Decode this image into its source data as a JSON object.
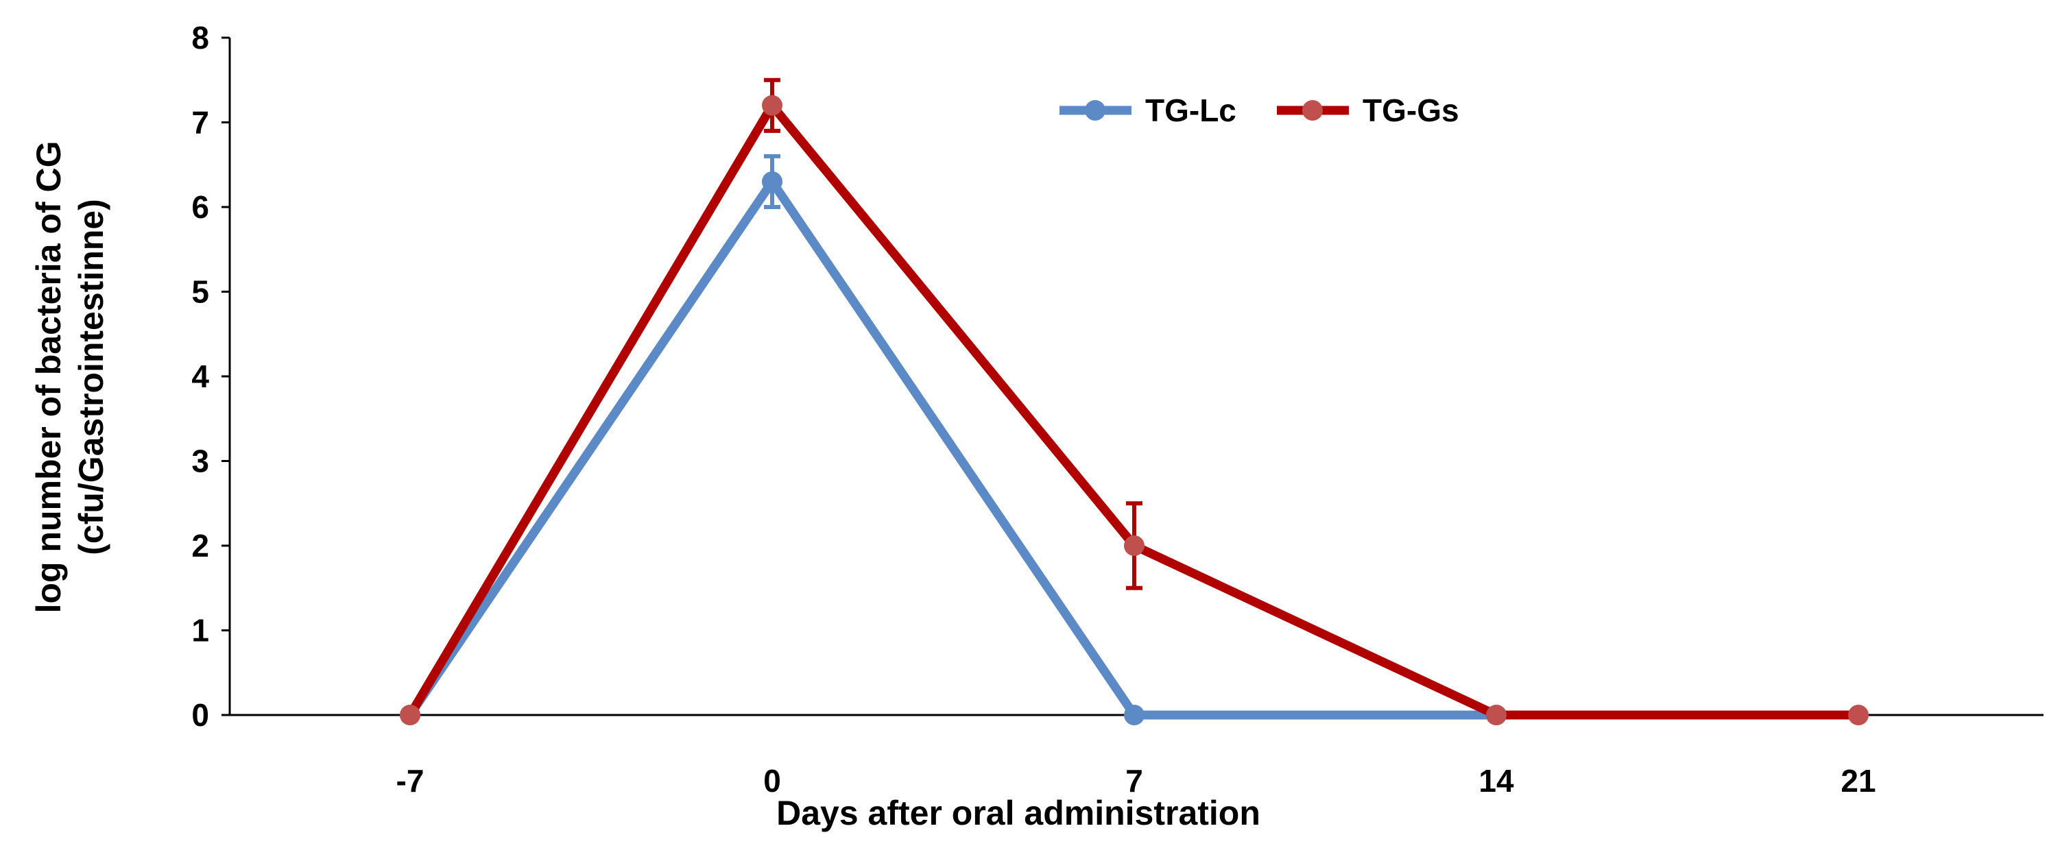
{
  "chart_data": {
    "type": "line",
    "title": "",
    "xlabel": "Days after oral administration",
    "ylabel_line1": "log number of bacteria of CG",
    "ylabel_line2": "(cfu/Gastrointestinne)",
    "categories": [
      "-7",
      "0",
      "7",
      "14",
      "21"
    ],
    "ylim": [
      0,
      8
    ],
    "yticks": [
      "0",
      "1",
      "2",
      "3",
      "4",
      "5",
      "6",
      "7",
      "8"
    ],
    "legend_position": "top-center",
    "series": [
      {
        "name": "TG-Lc",
        "color": "#5b8ac6",
        "values": [
          0,
          6.3,
          0,
          0,
          null
        ],
        "errors": [
          0,
          0.3,
          0,
          0,
          null
        ]
      },
      {
        "name": "TG-Gs",
        "color": "#b00000",
        "marker_color": "#c0504d",
        "values": [
          0,
          7.2,
          2.0,
          0,
          0
        ],
        "errors": [
          0,
          0.3,
          0.5,
          0,
          0
        ]
      }
    ]
  }
}
